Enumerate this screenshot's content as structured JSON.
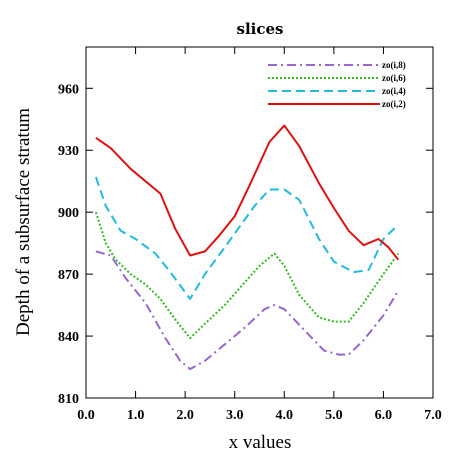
{
  "chart_data": {
    "type": "line",
    "title": "slices",
    "xlabel": "x values",
    "ylabel": "Depth of a subsurface stratum",
    "xlim": [
      0.0,
      7.0
    ],
    "ylim": [
      810,
      980
    ],
    "xticks": [
      "0.0",
      "1.0",
      "2.0",
      "3.0",
      "4.0",
      "5.0",
      "6.0",
      "7.0"
    ],
    "yticks": [
      "810",
      "840",
      "870",
      "900",
      "930",
      "960"
    ],
    "grid": false,
    "legend_position": "top-right",
    "series": [
      {
        "name": "zo(i,8)",
        "color": "#9966cc",
        "dash": "dash-dot",
        "x": [
          0.2,
          0.5,
          0.8,
          1.2,
          1.6,
          1.9,
          2.1,
          2.4,
          2.8,
          3.2,
          3.6,
          3.8,
          4.0,
          4.4,
          4.8,
          5.1,
          5.3,
          5.6,
          6.0,
          6.3
        ],
        "y": [
          881,
          879,
          868,
          856,
          839,
          828,
          824,
          828,
          836,
          844,
          853,
          855,
          853,
          843,
          833,
          831,
          831,
          838,
          850,
          862
        ]
      },
      {
        "name": "zo(i,6)",
        "color": "#33bb22",
        "dash": "dotted",
        "x": [
          0.2,
          0.4,
          0.6,
          0.9,
          1.2,
          1.5,
          1.8,
          2.1,
          2.4,
          2.8,
          3.2,
          3.5,
          3.8,
          4.0,
          4.3,
          4.7,
          5.0,
          5.3,
          5.6,
          6.0,
          6.3
        ],
        "y": [
          900,
          885,
          877,
          870,
          865,
          858,
          848,
          839,
          846,
          855,
          866,
          874,
          880,
          874,
          860,
          849,
          847,
          847,
          856,
          870,
          880
        ]
      },
      {
        "name": "zo(i,4)",
        "color": "#22bbdd",
        "dash": "dashed",
        "x": [
          0.2,
          0.4,
          0.7,
          1.0,
          1.4,
          1.7,
          2.1,
          2.4,
          2.8,
          3.1,
          3.4,
          3.7,
          4.0,
          4.3,
          4.7,
          5.0,
          5.4,
          5.7,
          6.0,
          6.3
        ],
        "y": [
          917,
          903,
          891,
          887,
          880,
          871,
          858,
          870,
          883,
          893,
          903,
          911,
          911,
          906,
          887,
          876,
          871,
          872,
          887,
          894
        ]
      },
      {
        "name": "zo(i,2)",
        "color": "#dd1111",
        "dash": "solid",
        "x": [
          0.2,
          0.5,
          0.9,
          1.5,
          1.8,
          2.1,
          2.4,
          2.7,
          3.0,
          3.3,
          3.7,
          4.0,
          4.3,
          4.7,
          5.0,
          5.3,
          5.6,
          5.9,
          6.1,
          6.3
        ],
        "y": [
          936,
          931,
          921,
          909,
          892,
          879,
          881,
          889,
          898,
          913,
          934,
          942,
          932,
          914,
          902,
          891,
          884,
          887,
          883,
          877
        ]
      }
    ]
  }
}
